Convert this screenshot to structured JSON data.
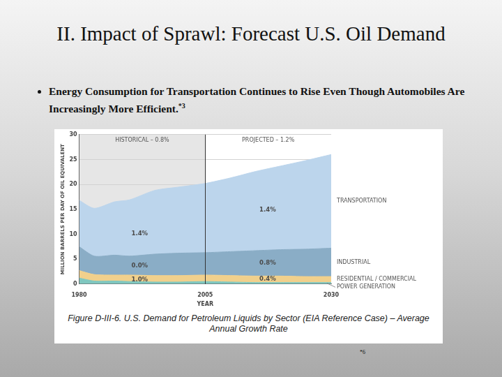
{
  "slide": {
    "title": "II. Impact of Sprawl: Forecast U.S. Oil Demand",
    "bullet": "Energy Consumption for Transportation Continues to Rise Even Though Automobiles Are Increasingly More Efficient.",
    "bullet_note": "*3",
    "footnote": "*6"
  },
  "chart_data": {
    "type": "area",
    "title": "Figure D-III-6. U.S. Demand for Petroleum Liquids by Sector (EIA Reference Case) – Average Annual Growth Rate",
    "x_label": "YEAR",
    "y_label": "MILLION BARRELS PER DAY OF OIL EQUIVALENT",
    "x": [
      1980,
      1983,
      1987,
      1990,
      1995,
      2000,
      2005,
      2010,
      2015,
      2020,
      2025,
      2030
    ],
    "series": [
      {
        "name": "POWER GENERATION",
        "color": "#7fc7bf",
        "values": [
          1.2,
          0.6,
          0.6,
          0.5,
          0.4,
          0.4,
          0.5,
          0.4,
          0.3,
          0.3,
          0.3,
          0.3
        ]
      },
      {
        "name": "RESIDENTIAL / COMMERCIAL",
        "color": "#f1d08c",
        "values": [
          1.5,
          1.3,
          1.2,
          1.3,
          1.3,
          1.3,
          1.3,
          1.3,
          1.3,
          1.3,
          1.2,
          1.2
        ]
      },
      {
        "name": "INDUSTRIAL",
        "color": "#8aadc6",
        "values": [
          4.8,
          3.7,
          4.0,
          3.8,
          4.3,
          4.5,
          4.5,
          4.8,
          5.1,
          5.3,
          5.5,
          5.7
        ]
      },
      {
        "name": "TRANSPORTATION",
        "color": "#bcd5ec",
        "values": [
          9.3,
          9.6,
          10.7,
          11.3,
          12.8,
          13.3,
          13.9,
          14.8,
          15.9,
          16.8,
          17.8,
          18.8
        ]
      }
    ],
    "stacked": true,
    "xlim": [
      1980,
      2030
    ],
    "xticks": [
      1980,
      2005,
      2030
    ],
    "ylim": [
      0,
      30
    ],
    "yticks": [
      0,
      5,
      10,
      15,
      20,
      25,
      30
    ],
    "grid": true,
    "periods": [
      {
        "name": "HISTORICAL – 0.8%",
        "x": [
          1980,
          2005
        ],
        "color": "#e6e6e6"
      },
      {
        "name": "PROJECTED – 1.2%",
        "x": [
          2005,
          2030
        ],
        "color": "#ffffff"
      }
    ],
    "annotations": [
      {
        "text": "1.4%",
        "x": 1992,
        "y": 10.1
      },
      {
        "text": "1.4%",
        "x": 2017.4,
        "y": 14.8
      },
      {
        "text": "0.0%",
        "x": 1992,
        "y": 3.7
      },
      {
        "text": "0.8%",
        "x": 2017.4,
        "y": 4.2
      },
      {
        "text": "1.0%",
        "x": 1992,
        "y": 0.85
      },
      {
        "text": "0.4%",
        "x": 2017.4,
        "y": 1.0
      }
    ]
  }
}
